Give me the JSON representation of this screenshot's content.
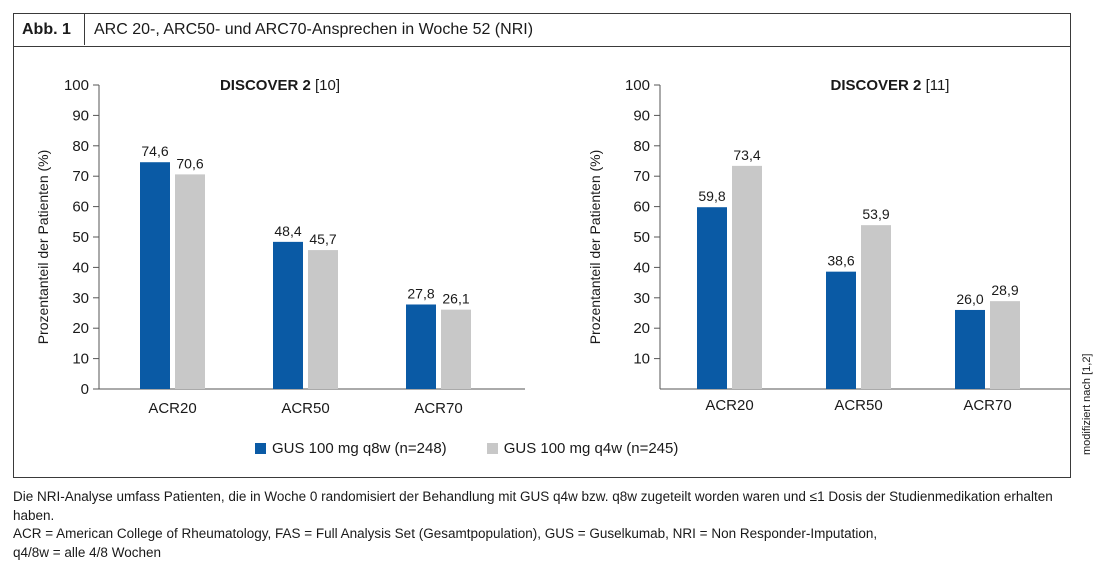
{
  "figure": {
    "label": "Abb. 1",
    "title": "ARC 20-, ARC50- und ARC70-Ansprechen in Woche 52 (NRI)",
    "side_note": "modifiziert nach [1,2]"
  },
  "colors": {
    "q8w": "#0a5aa5",
    "q4w": "#c8c8c8"
  },
  "legend": [
    {
      "label": "GUS 100 mg q8w (n=248)",
      "color": "#0a5aa5"
    },
    {
      "label": "GUS 100 mg q4w (n=245)",
      "color": "#c8c8c8"
    }
  ],
  "chart_data": [
    {
      "type": "bar",
      "title_bold": "DISCOVER 2",
      "title_ref": "[10]",
      "ylabel": "Prozentanteil der Patienten (%)",
      "ylim": [
        0,
        100
      ],
      "yticks": [
        0,
        10,
        20,
        30,
        40,
        50,
        60,
        70,
        80,
        90,
        100
      ],
      "categories": [
        "ACR20",
        "ACR50",
        "ACR70"
      ],
      "series": [
        {
          "name": "GUS 100 mg q8w (n=248)",
          "values": [
            74.6,
            48.4,
            27.8
          ],
          "labels": [
            "74,6",
            "48,4",
            "27,8"
          ],
          "color": "#0a5aa5"
        },
        {
          "name": "GUS 100 mg q4w (n=245)",
          "values": [
            70.6,
            45.7,
            26.1
          ],
          "labels": [
            "70,6",
            "45,7",
            "26,1"
          ],
          "color": "#c8c8c8"
        }
      ]
    },
    {
      "type": "bar",
      "title_bold": "DISCOVER 2",
      "title_ref": "[11]",
      "ylabel": "Prozentanteil der Patienten (%)",
      "ylim": [
        0,
        100
      ],
      "yticks": [
        10,
        20,
        30,
        40,
        50,
        60,
        70,
        80,
        90,
        100
      ],
      "categories": [
        "ACR20",
        "ACR50",
        "ACR70"
      ],
      "series": [
        {
          "name": "GUS 100 mg q8w (n=248)",
          "values": [
            59.8,
            38.6,
            26.0
          ],
          "labels": [
            "59,8",
            "38,6",
            "26,0"
          ],
          "color": "#0a5aa5"
        },
        {
          "name": "GUS 100 mg q4w (n=245)",
          "values": [
            73.4,
            53.9,
            28.9
          ],
          "labels": [
            "73,4",
            "53,9",
            "28,9"
          ],
          "color": "#c8c8c8"
        }
      ]
    }
  ],
  "footnotes": [
    "Die NRI-Analyse umfass Patienten, die in Woche 0 randomisiert der Behandlung mit GUS q4w bzw. q8w zugeteilt worden waren und ≤1 Dosis der Studienmedikation erhalten haben.",
    "ACR = American College of Rheumatology, FAS = Full Analysis Set (Gesamtpopulation), GUS = Guselkumab, NRI = Non Responder-Imputation,",
    "q4/8w = alle 4/8 Wochen"
  ]
}
